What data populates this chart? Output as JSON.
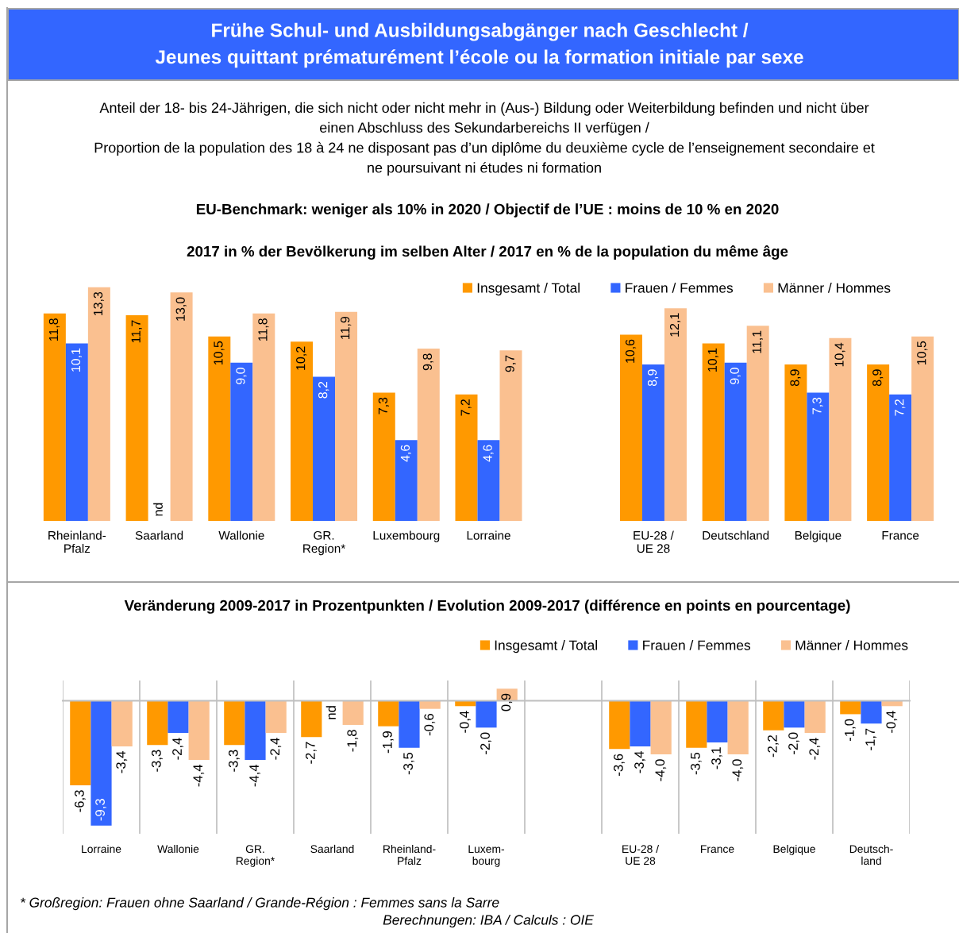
{
  "chart_data": [
    {
      "type": "bar",
      "title": "Frühe Schul- und Ausbildungsabgänger nach Geschlecht /\nJeunes quittant prématurément l’école ou la formation initiale par sexe",
      "subtitle": "Anteil der 18- bis 24-Jährigen, die sich nicht oder nicht mehr in (Aus-) Bildung oder Weiterbildung befinden und nicht über\neinen Abschluss des Sekundarbereichs II verfügen /\nProportion de la population des 18 à 24 ne disposant pas d’un diplôme du deuxième cycle de l’enseignement secondaire et\nne poursuivant ni études ni formation",
      "annotations": [
        "EU-Benchmark: weniger als 10% in 2020 / Objectif de l’UE : moins de 10 % en 2020",
        "2017 in % der Bevölkerung im selben Alter / 2017 en % de la population du même âge"
      ],
      "categories": [
        "Rheinland-\nPfalz",
        "Saarland",
        "Wallonie",
        "GR.\nRegion*",
        "Luxembourg",
        "Lorraine",
        null,
        "EU-28 /\nUE 28",
        "Deutschland",
        "Belgique",
        "France"
      ],
      "series": [
        {
          "name": "Insgesamt / Total",
          "color": "#ff9900",
          "values": [
            11.8,
            11.7,
            10.5,
            10.2,
            7.3,
            7.2,
            null,
            10.6,
            10.1,
            8.9,
            8.9
          ],
          "value_labels": [
            "11,8",
            "11,7",
            "10,5",
            "10,2",
            "7,3",
            "7,2",
            null,
            "10,6",
            "10,1",
            "8,9",
            "8,9"
          ]
        },
        {
          "name": "Frauen / Femmes",
          "color": "#3366ff",
          "values": [
            10.1,
            null,
            9.0,
            8.2,
            4.6,
            4.6,
            null,
            8.9,
            9.0,
            7.3,
            7.2
          ],
          "value_labels": [
            "10,1",
            "nd",
            "9,0",
            "8,2",
            "4,6",
            "4,6",
            null,
            "8,9",
            "9,0",
            "7,3",
            "7,2"
          ]
        },
        {
          "name": "Männer / Hommes",
          "color": "#fac090",
          "values": [
            13.3,
            13.0,
            11.8,
            11.9,
            9.8,
            9.7,
            null,
            12.1,
            11.1,
            10.4,
            10.5
          ],
          "value_labels": [
            "13,3",
            "13,0",
            "11,8",
            "11,9",
            "9,8",
            "9,7",
            null,
            "12,1",
            "11,1",
            "10,4",
            "10,5"
          ]
        }
      ],
      "legend": "top right",
      "tick_labels": "x"
    },
    {
      "type": "bar",
      "title": "Veränderung 2009-2017 in Prozentpunkten / Evolution 2009-2017 (différence en points en pourcentage)",
      "annotations": [
        "* Großregion: Frauen ohne Saarland / Grande-Région : Femmes sans la Sarre",
        "Berechnungen: IBA / Calculs : OIE"
      ],
      "categories": [
        "Lorraine",
        "Wallonie",
        "GR.\nRegion*",
        "Saarland",
        "Rheinland-\nPfalz",
        "Luxem-\nbourg",
        null,
        "EU-28 /\nUE 28",
        "France",
        "Belgique",
        "Deutsch-\nland"
      ],
      "series": [
        {
          "name": "Insgesamt / Total",
          "color": "#ff9900",
          "values": [
            -6.3,
            -3.3,
            -3.3,
            -2.7,
            -1.9,
            -0.4,
            null,
            -3.6,
            -3.5,
            -2.2,
            -1.0
          ],
          "value_labels": [
            "-6,3",
            "-3,3",
            "-3,3",
            "-2,7",
            "-1,9",
            "-0,4",
            null,
            "-3,6",
            "-3,5",
            "-2,2",
            "-1,0"
          ]
        },
        {
          "name": "Frauen / Femmes",
          "color": "#3366ff",
          "values": [
            -9.3,
            -2.4,
            -4.4,
            null,
            -3.5,
            -2.0,
            null,
            -3.4,
            -3.1,
            -2.0,
            -1.7
          ],
          "value_labels": [
            "-9,3",
            "-2,4",
            "-4,4",
            "nd",
            "-3,5",
            "-2,0",
            null,
            "-3,4",
            "-3,1",
            "-2,0",
            "-1,7"
          ]
        },
        {
          "name": "Männer / Hommes",
          "color": "#fac090",
          "values": [
            -3.4,
            -4.4,
            -2.4,
            -1.8,
            -0.6,
            0.9,
            null,
            -4.0,
            -4.0,
            -2.4,
            -0.4
          ],
          "value_labels": [
            "-3,4",
            "-4,4",
            "-2,4",
            "-1,8",
            "-0,6",
            "0,9",
            null,
            "-4,0",
            "-4,0",
            "-2,4",
            "-0,4"
          ]
        }
      ],
      "legend": "top right",
      "grid": "x",
      "tick_labels": "x"
    }
  ]
}
